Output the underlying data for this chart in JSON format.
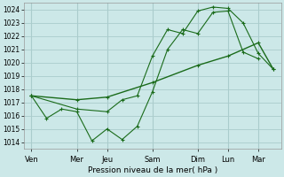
{
  "xlabel": "Pression niveau de la mer( hPa )",
  "bg_color": "#cce8e8",
  "grid_color": "#aacccc",
  "line_color": "#1a6b1a",
  "ylim": [
    1013.5,
    1024.5
  ],
  "yticks": [
    1014,
    1015,
    1016,
    1017,
    1018,
    1019,
    1020,
    1021,
    1022,
    1023,
    1024
  ],
  "x_tick_labels": [
    "Ven",
    "Mer",
    "Jeu",
    "Sam",
    "Dim",
    "Lun",
    "Mar"
  ],
  "x_tick_positions": [
    0,
    6,
    10,
    16,
    22,
    26,
    30
  ],
  "xlim": [
    -1,
    33
  ],
  "series1": {
    "x": [
      0,
      2,
      4,
      6,
      8,
      10,
      12,
      14,
      16,
      18,
      20,
      22,
      24,
      26,
      28,
      30
    ],
    "y": [
      1017.5,
      1015.8,
      1016.5,
      1016.3,
      1014.1,
      1015.0,
      1014.2,
      1015.2,
      1017.8,
      1021.0,
      1022.5,
      1022.2,
      1023.8,
      1023.9,
      1020.8,
      1020.3
    ]
  },
  "series2": {
    "x": [
      0,
      6,
      10,
      12,
      14,
      16,
      18,
      20,
      22,
      24,
      26,
      28,
      30,
      32
    ],
    "y": [
      1017.5,
      1016.5,
      1016.3,
      1017.2,
      1017.5,
      1020.5,
      1022.5,
      1022.2,
      1023.9,
      1024.2,
      1024.1,
      1023.0,
      1020.7,
      1019.5
    ]
  },
  "series3": {
    "x": [
      0,
      6,
      10,
      16,
      22,
      26,
      30,
      32
    ],
    "y": [
      1017.5,
      1017.2,
      1017.4,
      1018.5,
      1019.8,
      1020.5,
      1021.5,
      1019.5
    ]
  }
}
